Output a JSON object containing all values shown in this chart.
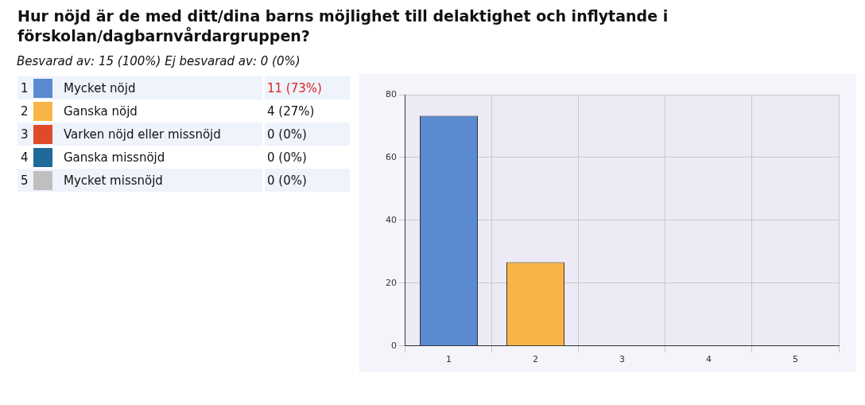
{
  "chart_data": {
    "type": "bar",
    "title": "Hur nöjd är de med ditt/dina barns möjlighet till delaktighet och inflytande i förskolan/dagbarnvårdargruppen?",
    "subtitle": "Besvarad av: 15 (100%) Ej besvarad av: 0 (0%)",
    "categories": [
      "1",
      "2",
      "3",
      "4",
      "5"
    ],
    "series": [
      {
        "name": "Mycket nöjd",
        "color": "#5a8ad0",
        "values": [
          73.3,
          null,
          null,
          null,
          null
        ]
      },
      {
        "name": "Ganska nöjd",
        "color": "#f8b547",
        "values": [
          null,
          26.7,
          null,
          null,
          null
        ]
      },
      {
        "name": "Varken nöjd eller missnöjd",
        "color": "#e04a2a",
        "values": [
          null,
          null,
          0,
          null,
          null
        ]
      },
      {
        "name": "Ganska missnöjd",
        "color": "#1f6a9a",
        "values": [
          null,
          null,
          null,
          0,
          null
        ]
      },
      {
        "name": "Mycket missnöjd",
        "color": "#bfbfbf",
        "values": [
          null,
          null,
          null,
          null,
          0
        ]
      }
    ],
    "annotations": [
      "11 (73%)",
      "4 (27%)",
      "0 (0%)",
      "0 (0%)",
      "0 (0%)"
    ],
    "stacked": true,
    "ylim": [
      0,
      80
    ],
    "yticks": [
      0,
      20,
      40,
      60,
      80
    ],
    "grid": true,
    "legend": "left"
  }
}
